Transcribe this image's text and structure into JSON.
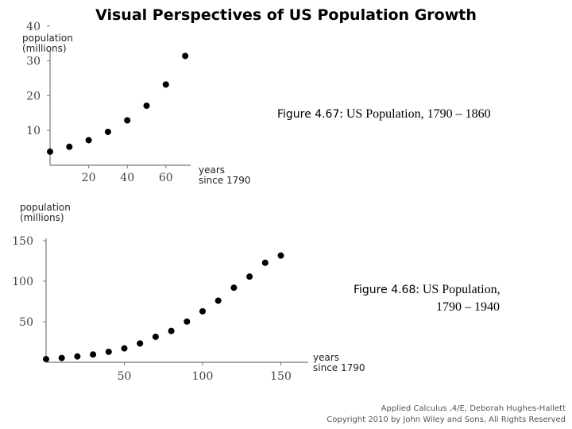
{
  "title": "Visual Perspectives of US Population Growth",
  "captions": [
    {
      "fig": "Figure 4.67",
      "text": ":  US Population, 1790 – 1860",
      "text2": ""
    },
    {
      "fig": "Figure 4.68",
      "text": ":  US Population,",
      "text2": "1790 – 1940"
    }
  ],
  "footer": {
    "line1": "Applied Calculus ,4/E, Deborah Hughes-Hallett",
    "line2": "Copyright 2010 by John Wiley and Sons, All Rights Reserved"
  },
  "chart_data": [
    {
      "type": "scatter",
      "ylabel_lines": [
        "population",
        "(millions)"
      ],
      "xlabel_lines": [
        "years",
        "since 1790"
      ],
      "x_ticks": [
        20,
        40,
        60
      ],
      "y_ticks": [
        10,
        20,
        30,
        40
      ],
      "xlim": [
        0,
        75
      ],
      "ylim": [
        0,
        45
      ],
      "x": [
        0,
        10,
        20,
        30,
        40,
        50,
        60,
        70
      ],
      "y": [
        3.9,
        5.3,
        7.2,
        9.6,
        12.9,
        17.1,
        23.2,
        31.4
      ],
      "color": "#000000"
    },
    {
      "type": "scatter",
      "ylabel_lines": [
        "population",
        "(millions)"
      ],
      "xlabel_lines": [
        "years",
        "since 1790"
      ],
      "x_ticks": [
        50,
        100,
        150
      ],
      "y_ticks": [
        50,
        100,
        150
      ],
      "xlim": [
        0,
        168
      ],
      "ylim": [
        0,
        155
      ],
      "x": [
        0,
        10,
        20,
        30,
        40,
        50,
        60,
        70,
        80,
        90,
        100,
        110,
        120,
        130,
        140,
        150
      ],
      "y": [
        3.9,
        5.3,
        7.2,
        9.6,
        12.9,
        17.1,
        23.2,
        31.4,
        38.6,
        50.2,
        62.9,
        76.0,
        92.0,
        105.7,
        122.8,
        131.7
      ],
      "color": "#000000"
    }
  ]
}
